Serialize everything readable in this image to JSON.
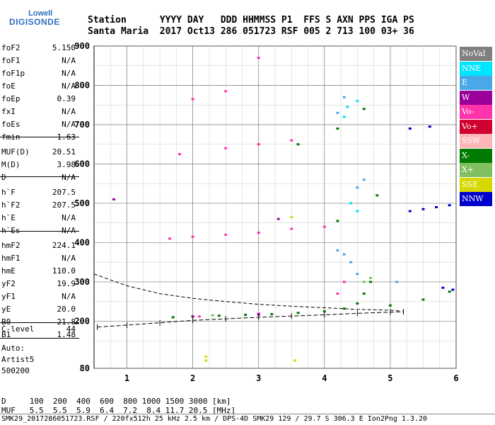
{
  "logo": {
    "line1": "Lowell",
    "line2": "DIGISONDE"
  },
  "header": {
    "row1": "Station      YYYY DAY   DDD HHMMSS P1  FFS S AXN PPS IGA PS",
    "row2": "Santa Maria  2017 Oct13 286 051723 RSF 005 2 713 100 03+ 36"
  },
  "params": [
    {
      "name": "foF2",
      "value": "5.150"
    },
    {
      "name": "foF1",
      "value": "N/A"
    },
    {
      "name": "foF1p",
      "value": "N/A"
    },
    {
      "name": "foE",
      "value": "N/A"
    },
    {
      "name": "foEp",
      "value": "0.39"
    },
    {
      "name": "fxI",
      "value": "N/A"
    },
    {
      "name": "foEs",
      "value": "N/A"
    },
    {
      "name": "fmin",
      "value": "1.63"
    },
    {
      "name": "MUF(D)",
      "value": "20.51"
    },
    {
      "name": "M(D)",
      "value": "3.98"
    },
    {
      "name": "D",
      "value": "N/A"
    },
    {
      "name": "h`F",
      "value": "207.5"
    },
    {
      "name": "h`F2",
      "value": "207.5"
    },
    {
      "name": "h`E",
      "value": "N/A"
    },
    {
      "name": "h`Es",
      "value": "N/A"
    },
    {
      "name": "hmF2",
      "value": "224.1"
    },
    {
      "name": "hmF1",
      "value": "N/A"
    },
    {
      "name": "hmE",
      "value": "110.0"
    },
    {
      "name": "yF2",
      "value": "19.9"
    },
    {
      "name": "yF1",
      "value": "N/A"
    },
    {
      "name": "yE",
      "value": "20.0"
    },
    {
      "name": "B0",
      "value": "21.8"
    },
    {
      "name": "B1",
      "value": "1.48"
    },
    {
      "name": "C-level",
      "value": "44"
    }
  ],
  "auto": {
    "line1": "Auto:",
    "line2": "Artist5",
    "line3": "500200"
  },
  "legend": [
    {
      "label": "NoVal",
      "bg": "#808080",
      "fg": "#ffffff"
    },
    {
      "label": "NNE",
      "bg": "#00e5ff",
      "fg": "#ffffff"
    },
    {
      "label": "E",
      "bg": "#4aa8e8",
      "fg": "#ffffff"
    },
    {
      "label": "W",
      "bg": "#9a009a",
      "fg": "#ffffff"
    },
    {
      "label": "Vo-",
      "bg": "#ff33aa",
      "fg": "#ffffff"
    },
    {
      "label": "Vo+",
      "bg": "#d00030",
      "fg": "#ffffff"
    },
    {
      "label": "SSW",
      "bg": "#ffb6b6",
      "fg": "#ffffff"
    },
    {
      "label": "X-",
      "bg": "#007a00",
      "fg": "#ffffff"
    },
    {
      "label": "X+",
      "bg": "#80c060",
      "fg": "#ffffff"
    },
    {
      "label": "SSE",
      "bg": "#d8d800",
      "fg": "#ffffff"
    },
    {
      "label": "NNW",
      "bg": "#0000cc",
      "fg": "#ffffff"
    }
  ],
  "footer": {
    "d_row": "D     100  200  400  600  800 1000 1500 3000 [km]",
    "muf_row": "MUF   5.5  5.5  5.9  6.4  7.2  8.4 11.7 20.5 [MHz]",
    "info_row": "SMK29_2017286051723.RSF / 220fx512h 25 kHz 2.5 km / DPS-4D SMK29 129 / 29.7 S 306.3 E Ion2Png 1.3.20"
  },
  "chart_data": {
    "type": "scatter",
    "title": "",
    "xlabel": "",
    "ylabel": "",
    "xlim": [
      0.5,
      6.0
    ],
    "ylim": [
      80,
      900
    ],
    "x_ticks": [
      1,
      2,
      3,
      4,
      5,
      6
    ],
    "y_ticks": [
      80,
      200,
      300,
      400,
      500,
      600,
      700,
      800,
      900
    ],
    "grid": true,
    "legend_placement": "right",
    "series": [
      {
        "name": "X-",
        "color": "#007a00",
        "points": [
          [
            1.7,
            210
          ],
          [
            2.0,
            212
          ],
          [
            2.4,
            214
          ],
          [
            2.8,
            216
          ],
          [
            3.2,
            218
          ],
          [
            3.6,
            221
          ],
          [
            4.0,
            225
          ],
          [
            4.3,
            232
          ],
          [
            4.5,
            245
          ],
          [
            4.6,
            270
          ],
          [
            4.7,
            300
          ],
          [
            5.0,
            240
          ],
          [
            5.5,
            255
          ],
          [
            5.9,
            275
          ],
          [
            4.2,
            455
          ],
          [
            4.8,
            520
          ],
          [
            3.6,
            650
          ],
          [
            4.2,
            690
          ],
          [
            4.6,
            740
          ]
        ]
      },
      {
        "name": "Vo-",
        "color": "#ff33aa",
        "points": [
          [
            1.65,
            410
          ],
          [
            2.0,
            415
          ],
          [
            2.5,
            420
          ],
          [
            3.0,
            425
          ],
          [
            3.5,
            435
          ],
          [
            4.0,
            440
          ],
          [
            4.2,
            270
          ],
          [
            4.3,
            300
          ],
          [
            1.8,
            625
          ],
          [
            2.5,
            640
          ],
          [
            3.0,
            650
          ],
          [
            3.5,
            660
          ],
          [
            2.0,
            765
          ],
          [
            2.5,
            785
          ],
          [
            3.0,
            870
          ],
          [
            2.1,
            212
          ],
          [
            3.0,
            219
          ]
        ]
      },
      {
        "name": "E",
        "color": "#4aa8e8",
        "points": [
          [
            4.2,
            380
          ],
          [
            4.3,
            370
          ],
          [
            4.4,
            350
          ],
          [
            4.5,
            320
          ],
          [
            4.5,
            540
          ],
          [
            4.6,
            560
          ],
          [
            5.1,
            300
          ],
          [
            4.2,
            730
          ],
          [
            4.3,
            770
          ]
        ]
      },
      {
        "name": "NNW",
        "color": "#0000cc",
        "points": [
          [
            5.3,
            480
          ],
          [
            5.5,
            485
          ],
          [
            5.7,
            490
          ],
          [
            5.9,
            495
          ],
          [
            5.3,
            690
          ],
          [
            5.6,
            695
          ],
          [
            5.8,
            285
          ],
          [
            5.95,
            280
          ]
        ]
      },
      {
        "name": "W",
        "color": "#9a009a",
        "points": [
          [
            0.8,
            510
          ],
          [
            2.0,
            212
          ],
          [
            3.0,
            217
          ],
          [
            3.3,
            460
          ]
        ]
      },
      {
        "name": "NNE",
        "color": "#00e5ff",
        "points": [
          [
            4.4,
            500
          ],
          [
            4.5,
            480
          ],
          [
            4.3,
            720
          ],
          [
            4.35,
            745
          ],
          [
            4.5,
            760
          ]
        ]
      },
      {
        "name": "SSE",
        "color": "#d8d800",
        "points": [
          [
            2.2,
            110
          ],
          [
            2.2,
            100
          ],
          [
            3.5,
            465
          ],
          [
            3.55,
            100
          ]
        ]
      },
      {
        "name": "X+",
        "color": "#80c060",
        "points": [
          [
            4.6,
            300
          ],
          [
            4.7,
            310
          ],
          [
            2.3,
            215
          ]
        ]
      }
    ],
    "profile_curve": [
      [
        0.5,
        320
      ],
      [
        1.0,
        290
      ],
      [
        1.5,
        270
      ],
      [
        2.0,
        258
      ],
      [
        2.5,
        250
      ],
      [
        3.0,
        243
      ],
      [
        3.5,
        238
      ],
      [
        4.0,
        234
      ],
      [
        4.5,
        230
      ],
      [
        5.0,
        228
      ],
      [
        5.15,
        226
      ]
    ],
    "trace_curve": [
      [
        0.55,
        185
      ],
      [
        1.0,
        190
      ],
      [
        1.5,
        196
      ],
      [
        2.0,
        202
      ],
      [
        2.5,
        206
      ],
      [
        3.0,
        210
      ],
      [
        3.5,
        213
      ],
      [
        4.0,
        216
      ],
      [
        4.5,
        220
      ],
      [
        5.0,
        223
      ],
      [
        5.2,
        224
      ]
    ]
  }
}
